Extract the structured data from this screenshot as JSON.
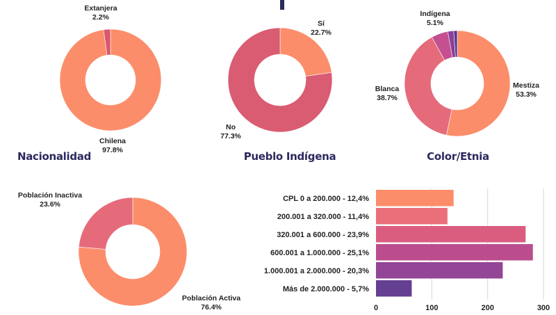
{
  "chart_data": [
    {
      "type": "pie",
      "title": "Nacionalidad",
      "slices": [
        {
          "label": "Chilena",
          "value": 97.8,
          "display": "97.8%",
          "color": "#fc8d6a"
        },
        {
          "label": "Extanjera",
          "value": 2.2,
          "display": "2.2%",
          "color": "#d9586f"
        }
      ]
    },
    {
      "type": "pie",
      "title": "Pueblo Indígena",
      "slices": [
        {
          "label": "Sí",
          "value": 22.7,
          "display": "22.7%",
          "color": "#fc8d6a"
        },
        {
          "label": "No",
          "value": 77.3,
          "display": "77.3%",
          "color": "#d95c72"
        }
      ]
    },
    {
      "type": "pie",
      "title": "Color/Etnia",
      "slices": [
        {
          "label": "Mestiza",
          "value": 53.3,
          "display": "53.3%",
          "color": "#fc8d6a"
        },
        {
          "label": "Blanca",
          "value": 38.7,
          "display": "38.7%",
          "color": "#e56b7b"
        },
        {
          "label": "Indígena",
          "value": 5.1,
          "display": "5.1%",
          "color": "#c4508f"
        },
        {
          "label": "",
          "value": 1.8,
          "display": "",
          "color": "#8a3f98"
        },
        {
          "label": "",
          "value": 1.1,
          "display": "",
          "color": "#5b3a8f"
        }
      ]
    },
    {
      "type": "pie",
      "title": "",
      "slices": [
        {
          "label": "Población Activa",
          "value": 76.4,
          "display": "76.4%",
          "color": "#fc8d6a"
        },
        {
          "label": "Población Inactiva",
          "value": 23.6,
          "display": "23.6%",
          "color": "#e56b7b"
        }
      ]
    },
    {
      "type": "bar",
      "orientation": "horizontal",
      "title": "",
      "categories": [
        "CPL 0 a 200.000 - 12,4%",
        "200.001 a 320.000 - 11,4%",
        "320.001 a 600.000 - 23,9%",
        "600.001 a 1.000.000 - 25,1%",
        "1.000.001 a 2.000.000 - 20,3%",
        "Más de 2.000.000 - 5,7%"
      ],
      "values": [
        139,
        128,
        268,
        281,
        227,
        64
      ],
      "colors": [
        "#fc8d6a",
        "#ea6f7a",
        "#da5d80",
        "#bb4d8e",
        "#934596",
        "#653f92"
      ],
      "xlim": [
        0,
        300
      ],
      "xticks": [
        "0",
        "100",
        "200",
        "300"
      ],
      "xtick_values": [
        0,
        100,
        200,
        300
      ],
      "grid": true
    }
  ]
}
